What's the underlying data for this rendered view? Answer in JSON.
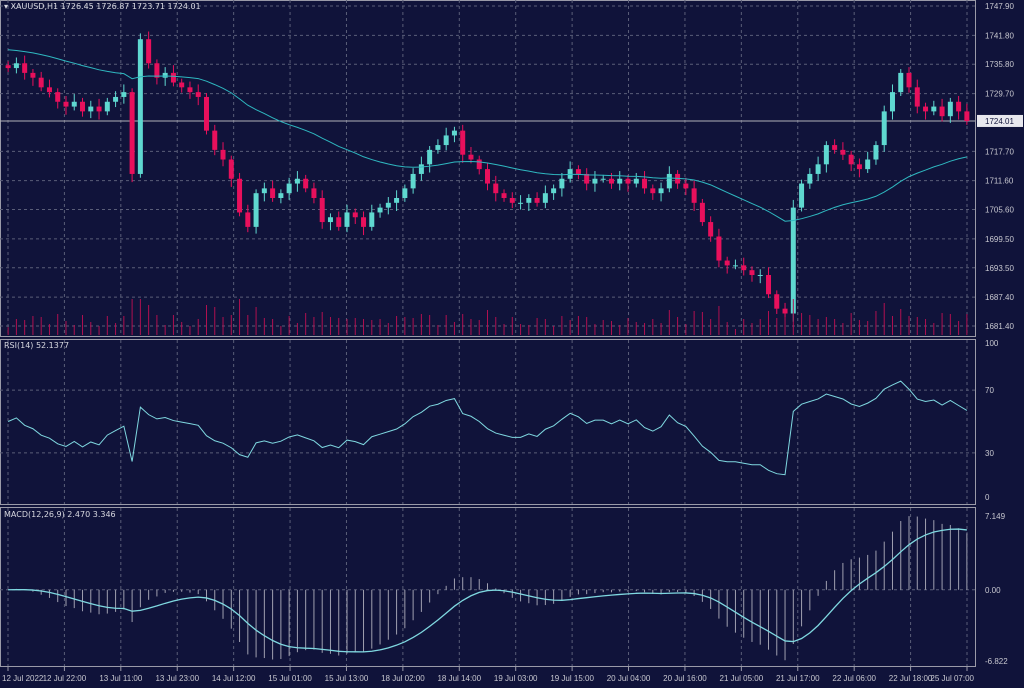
{
  "header": {
    "symbol": "XAUUSD,H1",
    "ohlc": "1726.45 1726.87 1723.71 1724.01"
  },
  "colors": {
    "background": "#10133a",
    "bull": "#5fd8d0",
    "bear": "#e8105c",
    "ma": "#2fb8c0",
    "volume": "#b01050",
    "grid": "#5a5e78",
    "indicator": "#7fd8e0",
    "histogram": "#a0a0b0"
  },
  "chart_data": [
    {
      "type": "candlestick",
      "symbol": "XAUUSD",
      "timeframe": "H1",
      "ylim": [
        1681.4,
        1747.9
      ],
      "y_ticks": [
        "1747.90",
        "1741.80",
        "1735.80",
        "1729.70",
        "1724.01",
        "1717.70",
        "1711.60",
        "1705.60",
        "1699.50",
        "1693.50",
        "1687.40",
        "1681.40"
      ],
      "current_price": "1724.01",
      "x_ticks": [
        "12 Jul 2022",
        "12 Jul 22:00",
        "13 Jul 11:00",
        "13 Jul 23:00",
        "14 Jul 12:00",
        "15 Jul 01:00",
        "15 Jul 13:00",
        "18 Jul 02:00",
        "18 Jul 14:00",
        "19 Jul 03:00",
        "19 Jul 15:00",
        "20 Jul 04:00",
        "20 Jul 16:00",
        "21 Jul 05:00",
        "21 Jul 17:00",
        "22 Jul 06:00",
        "22 Jul 18:00",
        "25 Jul 07:00"
      ],
      "closes": [
        1735,
        1736,
        1734,
        1733,
        1731,
        1730,
        1728,
        1727,
        1728,
        1726,
        1727,
        1726,
        1728,
        1729,
        1730,
        1713,
        1741,
        1736,
        1733,
        1734,
        1732,
        1731,
        1730,
        1729,
        1722,
        1718,
        1716,
        1712,
        1705,
        1702,
        1709,
        1710,
        1708,
        1709,
        1711,
        1712,
        1710,
        1708,
        1703,
        1704,
        1702,
        1705,
        1704,
        1702,
        1705,
        1706,
        1707,
        1708,
        1710,
        1713,
        1715,
        1718,
        1719,
        1721,
        1722,
        1717,
        1716,
        1714,
        1711,
        1709,
        1708,
        1707,
        1707,
        1708,
        1707,
        1709,
        1710,
        1712,
        1714,
        1713,
        1711,
        1712,
        1712,
        1711,
        1712,
        1711,
        1712,
        1710,
        1709,
        1710,
        1713,
        1711,
        1710,
        1707,
        1703,
        1700,
        1695,
        1694,
        1694,
        1693,
        1692,
        1692,
        1688,
        1685,
        1684,
        1706,
        1711,
        1713,
        1715,
        1719,
        1718,
        1717,
        1715,
        1714,
        1716,
        1719,
        1726,
        1730,
        1734,
        1731,
        1727,
        1726,
        1727,
        1725,
        1728,
        1726,
        1724
      ]
    },
    {
      "type": "line",
      "title": "RSI(14) 52.1377",
      "ylim": [
        0,
        100
      ],
      "y_ticks": [
        "100",
        "70",
        "30",
        "0"
      ],
      "levels": [
        70,
        30
      ]
    },
    {
      "type": "bar+line",
      "title": "MACD(12,26,9) 2.470 3.346",
      "ylim": [
        -6.822,
        7.149
      ],
      "y_ticks": [
        "7.149",
        "0.00",
        "-6.822"
      ]
    }
  ]
}
